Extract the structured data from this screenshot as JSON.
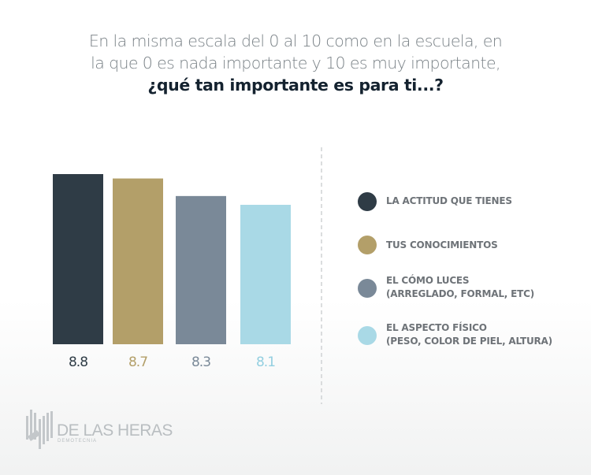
{
  "title": {
    "line1": "En la misma escala del 0 al 10 como en la escuela, en",
    "line2": "la que 0 es nada importante y 10 es muy importante,",
    "question": "¿qué tan importante es para ti...?"
  },
  "chart_data": {
    "type": "bar",
    "title": "En la misma escala del 0 al 10 como en la escuela, en la que 0 es nada importante y 10 es muy importante, ¿qué tan importante es para ti...?",
    "categories": [
      "LA ACTITUD QUE TIENES",
      "TUS CONOCIMIENTOS",
      "EL CÓMO LUCES (ARREGLADO, FORMAL, ETC)",
      "EL ASPECTO FÍSICO (PESO, COLOR DE PIEL, ALTURA)"
    ],
    "values": [
      8.8,
      8.7,
      8.3,
      8.1
    ],
    "data_labels": [
      "8.8",
      "8.7",
      "8.3",
      "8.1"
    ],
    "colors": [
      "#2f3c46",
      "#b39f69",
      "#7a8998",
      "#a9d9e6"
    ],
    "label_colors": [
      "#2f3c46",
      "#b39f69",
      "#7a8998",
      "#93cfe0"
    ],
    "xlabel": "",
    "ylabel": "",
    "grid": false,
    "legend_position": "right",
    "legend": [
      {
        "line1": "LA ACTITUD QUE TIENES",
        "line2": ""
      },
      {
        "line1": "TUS CONOCIMIENTOS",
        "line2": ""
      },
      {
        "line1": "EL CÓMO LUCES",
        "line2": "(ARREGLADO, FORMAL, ETC)"
      },
      {
        "line1": "EL ASPECTO FÍSICO",
        "line2": "(PESO, COLOR DE PIEL, ALTURA)"
      }
    ]
  },
  "logo": {
    "name": "DE LAS HERAS",
    "sub": "DEMOTECNIA"
  }
}
